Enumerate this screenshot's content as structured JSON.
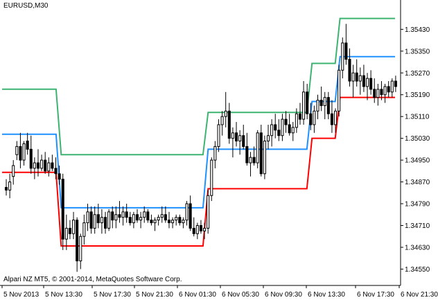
{
  "window": {
    "symbol_label": "EURUSD,M30",
    "copyright": "Alpari NZ MT5, © 2001-2014, MetaQuotes Software Corp."
  },
  "colors": {
    "background": "#ffffff",
    "upper_band": "#3cb371",
    "middle_band": "#1e90ff",
    "lower_band": "#ff0000",
    "candles": "#000000"
  },
  "chart_data": {
    "type": "candlestick",
    "title": "",
    "y_axis_ticks": [
      "1.35430",
      "1.35350",
      "1.35270",
      "1.35190",
      "1.35110",
      "1.35030",
      "1.34950",
      "1.34870",
      "1.34790",
      "1.34710",
      "1.34630",
      "1.34550"
    ],
    "x_axis_ticks": [
      "5 Nov 2013",
      "5 Nov 13:30",
      "5 Nov 17:30",
      "5 Nov 21:30",
      "6 Nov 01:30",
      "6 Nov 05:30",
      "6 Nov 09:30",
      "6 Nov 13:30",
      "6 Nov 17:30",
      "6 Nov 21:30"
    ],
    "ylim": [
      1.3449,
      1.3553
    ],
    "grid": false,
    "series": [
      {
        "name": "",
        "role": "upper",
        "color": "#3cb371",
        "points": [
          [
            0,
            1.3521
          ],
          [
            15.8,
            1.3521
          ],
          [
            17.3,
            1.3497
          ],
          [
            58.8,
            1.3497
          ],
          [
            60.3,
            1.35125
          ],
          [
            89.2,
            1.35125
          ],
          [
            90.7,
            1.35305
          ],
          [
            97.5,
            1.35305
          ],
          [
            98.9,
            1.3547
          ],
          [
            115,
            1.3547
          ]
        ]
      },
      {
        "name": "",
        "role": "middle",
        "color": "#1e90ff",
        "points": [
          [
            0,
            1.35045
          ],
          [
            15.8,
            1.35045
          ],
          [
            17.3,
            1.34775
          ],
          [
            58.8,
            1.34775
          ],
          [
            60.3,
            1.3499
          ],
          [
            89.2,
            1.3499
          ],
          [
            90.7,
            1.35165
          ],
          [
            97.5,
            1.35165
          ],
          [
            98.9,
            1.3533
          ],
          [
            115,
            1.3533
          ]
        ]
      },
      {
        "name": "",
        "role": "lower",
        "color": "#ff0000",
        "points": [
          [
            0,
            1.34905
          ],
          [
            15.8,
            1.34905
          ],
          [
            17.3,
            1.34635
          ],
          [
            58.8,
            1.34635
          ],
          [
            60.3,
            1.34845
          ],
          [
            89.2,
            1.34845
          ],
          [
            90.7,
            1.3503
          ],
          [
            97.5,
            1.3503
          ],
          [
            98.9,
            1.3518
          ],
          [
            115,
            1.3518
          ]
        ]
      }
    ],
    "candles": [
      [
        1.3485,
        1.3488,
        1.3482,
        1.3484
      ],
      [
        1.3484,
        1.349,
        1.3481,
        1.3487
      ],
      [
        1.3489,
        1.3495,
        1.3486,
        1.3493
      ],
      [
        1.3497,
        1.3502,
        1.3495,
        1.35
      ],
      [
        1.35,
        1.3505,
        1.3492,
        1.3495
      ],
      [
        1.3495,
        1.3502,
        1.3493,
        1.3501
      ],
      [
        1.3502,
        1.3505,
        1.3497,
        1.3499
      ],
      [
        1.3499,
        1.3504,
        1.349,
        1.3492
      ],
      [
        1.3492,
        1.3496,
        1.3488,
        1.3494
      ],
      [
        1.3494,
        1.3499,
        1.3489,
        1.3492
      ],
      [
        1.3492,
        1.3497,
        1.3491,
        1.3495
      ],
      [
        1.3495,
        1.3498,
        1.349,
        1.3491
      ],
      [
        1.3491,
        1.3496,
        1.3489,
        1.3494
      ],
      [
        1.3494,
        1.3497,
        1.3491,
        1.3492
      ],
      [
        1.3492,
        1.3496,
        1.3488,
        1.349
      ],
      [
        1.349,
        1.3493,
        1.3486,
        1.3488
      ],
      [
        1.3488,
        1.349,
        1.3462,
        1.3466
      ],
      [
        1.3466,
        1.3475,
        1.3462,
        1.347
      ],
      [
        1.347,
        1.3473,
        1.3466,
        1.3468
      ],
      [
        1.3468,
        1.3476,
        1.3466,
        1.3473
      ],
      [
        1.3473,
        1.3474,
        1.3454,
        1.3458
      ],
      [
        1.3458,
        1.3468,
        1.3455,
        1.3467
      ],
      [
        1.3467,
        1.3475,
        1.3464,
        1.3472
      ],
      [
        1.3472,
        1.3479,
        1.3469,
        1.3476
      ],
      [
        1.3476,
        1.3478,
        1.3468,
        1.347
      ],
      [
        1.347,
        1.3478,
        1.3468,
        1.3475
      ],
      [
        1.3475,
        1.3479,
        1.347,
        1.3472
      ],
      [
        1.3472,
        1.3477,
        1.3468,
        1.3474
      ],
      [
        1.3474,
        1.3476,
        1.3468,
        1.347
      ],
      [
        1.347,
        1.3477,
        1.3469,
        1.3476
      ],
      [
        1.3476,
        1.3478,
        1.347,
        1.3473
      ],
      [
        1.3473,
        1.3478,
        1.347,
        1.3475
      ],
      [
        1.3475,
        1.348,
        1.3472,
        1.3474
      ],
      [
        1.3474,
        1.3478,
        1.3471,
        1.3476
      ],
      [
        1.3476,
        1.3479,
        1.3472,
        1.3474
      ],
      [
        1.3474,
        1.3476,
        1.3471,
        1.3472
      ],
      [
        1.3472,
        1.3476,
        1.347,
        1.3475
      ],
      [
        1.3475,
        1.3477,
        1.3472,
        1.3473
      ],
      [
        1.3473,
        1.3476,
        1.347,
        1.3474
      ],
      [
        1.3474,
        1.3478,
        1.3472,
        1.3476
      ],
      [
        1.3476,
        1.3477,
        1.3472,
        1.3473
      ],
      [
        1.3473,
        1.3475,
        1.3471,
        1.3472
      ],
      [
        1.3472,
        1.3474,
        1.3469,
        1.3473
      ],
      [
        1.3473,
        1.3475,
        1.3471,
        1.3474
      ],
      [
        1.3474,
        1.3478,
        1.3472,
        1.3475
      ],
      [
        1.3475,
        1.3478,
        1.3472,
        1.3473
      ],
      [
        1.3473,
        1.3476,
        1.347,
        1.3472
      ],
      [
        1.3472,
        1.3474,
        1.347,
        1.3473
      ],
      [
        1.3473,
        1.3475,
        1.3471,
        1.3474
      ],
      [
        1.3474,
        1.3475,
        1.3471,
        1.3472
      ],
      [
        1.3472,
        1.3474,
        1.347,
        1.3473
      ],
      [
        1.3473,
        1.348,
        1.3471,
        1.3479
      ],
      [
        1.3479,
        1.3482,
        1.3469,
        1.347
      ],
      [
        1.347,
        1.3474,
        1.3467,
        1.3468
      ],
      [
        1.3468,
        1.3472,
        1.3466,
        1.3471
      ],
      [
        1.3471,
        1.3473,
        1.3468,
        1.3469
      ],
      [
        1.3469,
        1.3472,
        1.3466,
        1.347
      ],
      [
        1.347,
        1.3484,
        1.3468,
        1.3482
      ],
      [
        1.3482,
        1.3496,
        1.348,
        1.3495
      ],
      [
        1.3495,
        1.3502,
        1.3492,
        1.35
      ],
      [
        1.35,
        1.351,
        1.3498,
        1.3508
      ],
      [
        1.3508,
        1.3513,
        1.3504,
        1.3511
      ],
      [
        1.3511,
        1.352,
        1.3507,
        1.3513
      ],
      [
        1.3513,
        1.3516,
        1.3501,
        1.3503
      ],
      [
        1.3503,
        1.3507,
        1.3496,
        1.3505
      ],
      [
        1.3505,
        1.3509,
        1.35,
        1.3502
      ],
      [
        1.3502,
        1.3506,
        1.3497,
        1.3504
      ],
      [
        1.3504,
        1.3508,
        1.3499,
        1.35
      ],
      [
        1.35,
        1.3505,
        1.3493,
        1.3494
      ],
      [
        1.3494,
        1.3498,
        1.3489,
        1.3496
      ],
      [
        1.3496,
        1.35,
        1.3493,
        1.3494
      ],
      [
        1.3494,
        1.3506,
        1.3492,
        1.3505
      ],
      [
        1.3505,
        1.3508,
        1.3489,
        1.349
      ],
      [
        1.349,
        1.3504,
        1.3488,
        1.3502
      ],
      [
        1.3502,
        1.3508,
        1.3499,
        1.3504
      ],
      [
        1.3504,
        1.351,
        1.35,
        1.3508
      ],
      [
        1.3508,
        1.3512,
        1.3503,
        1.3506
      ],
      [
        1.3506,
        1.351,
        1.3502,
        1.3504
      ],
      [
        1.3504,
        1.3512,
        1.3502,
        1.351
      ],
      [
        1.351,
        1.3513,
        1.3505,
        1.3508
      ],
      [
        1.3508,
        1.3512,
        1.3504,
        1.3505
      ],
      [
        1.3505,
        1.3509,
        1.3502,
        1.3507
      ],
      [
        1.3507,
        1.3514,
        1.3505,
        1.3512
      ],
      [
        1.3512,
        1.3516,
        1.3508,
        1.351
      ],
      [
        1.351,
        1.3524,
        1.3508,
        1.352
      ],
      [
        1.352,
        1.3523,
        1.351,
        1.3512
      ],
      [
        1.3512,
        1.3516,
        1.3506,
        1.3508
      ],
      [
        1.3508,
        1.3515,
        1.3505,
        1.3513
      ],
      [
        1.3513,
        1.3519,
        1.351,
        1.3517
      ],
      [
        1.3517,
        1.3522,
        1.3513,
        1.3515
      ],
      [
        1.3515,
        1.352,
        1.351,
        1.3518
      ],
      [
        1.3518,
        1.352,
        1.351,
        1.3512
      ],
      [
        1.3512,
        1.3517,
        1.3505,
        1.3508
      ],
      [
        1.3508,
        1.3514,
        1.3505,
        1.3513
      ],
      [
        1.3513,
        1.353,
        1.3511,
        1.3528
      ],
      [
        1.3528,
        1.354,
        1.3525,
        1.3538
      ],
      [
        1.3538,
        1.3545,
        1.353,
        1.3532
      ],
      [
        1.3532,
        1.3536,
        1.3522,
        1.3524
      ],
      [
        1.3524,
        1.353,
        1.3518,
        1.3527
      ],
      [
        1.3527,
        1.3532,
        1.3522,
        1.3524
      ],
      [
        1.3524,
        1.3529,
        1.3519,
        1.3526
      ],
      [
        1.3526,
        1.353,
        1.352,
        1.3522
      ],
      [
        1.3522,
        1.3527,
        1.3517,
        1.3525
      ],
      [
        1.3525,
        1.3528,
        1.3519,
        1.3521
      ],
      [
        1.3521,
        1.3525,
        1.3516,
        1.3518
      ],
      [
        1.3518,
        1.3523,
        1.3515,
        1.3521
      ],
      [
        1.3521,
        1.3524,
        1.3517,
        1.3519
      ],
      [
        1.3519,
        1.3523,
        1.3516,
        1.3522
      ],
      [
        1.3522,
        1.3524,
        1.3518,
        1.352
      ],
      [
        1.352,
        1.3525,
        1.3518,
        1.3524
      ],
      [
        1.3524,
        1.3526,
        1.352,
        1.3522
      ]
    ]
  }
}
